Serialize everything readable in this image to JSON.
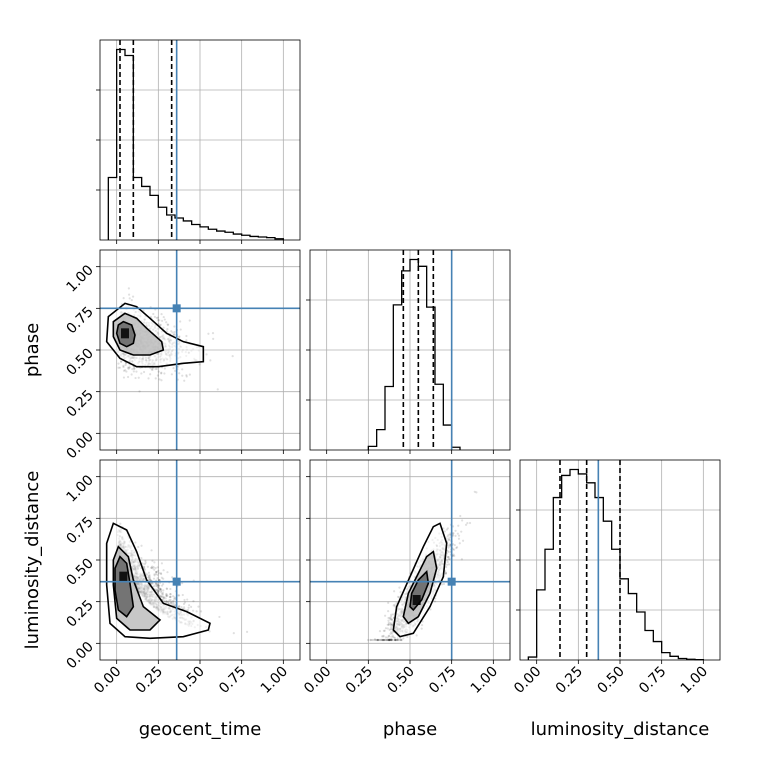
{
  "chart_data": {
    "type": "corner",
    "parameters": [
      "geocent_time",
      "phase",
      "luminosity_distance"
    ],
    "axis_labels": {
      "x": [
        "geocent_time",
        "phase",
        "luminosity_distance"
      ],
      "y": [
        "",
        "phase",
        "luminosity_distance"
      ]
    },
    "tick_labels": [
      "0.00",
      "0.25",
      "0.50",
      "0.75",
      "1.00"
    ],
    "tick_values": [
      0,
      0.25,
      0.5,
      0.75,
      1.0
    ],
    "axis_range": [
      -0.1,
      1.1
    ],
    "grid": true,
    "truth_color": "#4682b4",
    "truths": {
      "geocent_time": 0.36,
      "phase": 0.75,
      "luminosity_distance": 0.37
    },
    "quantiles": {
      "geocent_time": [
        0.02,
        0.1,
        0.33
      ],
      "phase": [
        0.46,
        0.55,
        0.64
      ],
      "luminosity_distance": [
        0.14,
        0.3,
        0.5
      ]
    },
    "histograms": {
      "geocent_time": {
        "edges": [
          -0.05,
          0.0,
          0.05,
          0.1,
          0.15,
          0.2,
          0.25,
          0.3,
          0.35,
          0.4,
          0.45,
          0.5,
          0.55,
          0.6,
          0.65,
          0.7,
          0.75,
          0.8,
          0.85,
          0.9,
          0.95,
          1.0
        ],
        "counts": [
          1.05,
          3.2,
          3.1,
          1.05,
          0.9,
          0.75,
          0.55,
          0.42,
          0.37,
          0.32,
          0.26,
          0.22,
          0.18,
          0.15,
          0.13,
          0.1,
          0.08,
          0.06,
          0.05,
          0.04,
          0.02
        ]
      },
      "phase": {
        "edges": [
          0.25,
          0.3,
          0.35,
          0.4,
          0.45,
          0.5,
          0.55,
          0.6,
          0.65,
          0.7,
          0.75,
          0.8
        ],
        "counts": [
          0.08,
          0.45,
          1.4,
          3.2,
          3.95,
          4.2,
          4.05,
          3.15,
          1.45,
          0.55,
          0.06
        ]
      },
      "luminosity_distance": {
        "edges": [
          -0.05,
          0.0,
          0.05,
          0.1,
          0.15,
          0.2,
          0.25,
          0.3,
          0.35,
          0.4,
          0.45,
          0.5,
          0.55,
          0.6,
          0.65,
          0.7,
          0.75,
          0.8,
          0.85,
          0.9,
          0.95,
          1.0
        ],
        "counts": [
          0.04,
          0.95,
          1.5,
          2.2,
          2.5,
          2.58,
          2.52,
          2.4,
          2.2,
          1.88,
          1.5,
          1.1,
          0.9,
          0.65,
          0.4,
          0.25,
          0.1,
          0.05,
          0.02,
          0.01,
          0.005
        ]
      }
    },
    "joint_contours": {
      "phase_vs_geocent_time": [
        {
          "level": "outer",
          "points": [
            [
              0.05,
              0.78
            ],
            [
              0.12,
              0.76
            ],
            [
              0.2,
              0.69
            ],
            [
              0.3,
              0.6
            ],
            [
              0.4,
              0.55
            ],
            [
              0.52,
              0.52
            ],
            [
              0.52,
              0.43
            ],
            [
              0.4,
              0.42
            ],
            [
              0.25,
              0.4
            ],
            [
              0.12,
              0.4
            ],
            [
              0.02,
              0.45
            ],
            [
              -0.06,
              0.55
            ],
            [
              -0.05,
              0.7
            ]
          ]
        },
        {
          "level": "mid",
          "points": [
            [
              0.05,
              0.72
            ],
            [
              0.12,
              0.69
            ],
            [
              0.18,
              0.63
            ],
            [
              0.27,
              0.55
            ],
            [
              0.28,
              0.5
            ],
            [
              0.2,
              0.47
            ],
            [
              0.1,
              0.47
            ],
            [
              0.02,
              0.5
            ],
            [
              -0.02,
              0.58
            ],
            [
              -0.02,
              0.67
            ]
          ]
        },
        {
          "level": "inner",
          "points": [
            [
              0.04,
              0.67
            ],
            [
              0.09,
              0.65
            ],
            [
              0.11,
              0.59
            ],
            [
              0.1,
              0.54
            ],
            [
              0.06,
              0.52
            ],
            [
              0.02,
              0.54
            ],
            [
              0.0,
              0.6
            ],
            [
              0.01,
              0.65
            ]
          ]
        }
      ],
      "luminosity_distance_vs_geocent_time": [
        {
          "level": "outer",
          "points": [
            [
              -0.02,
              0.72
            ],
            [
              0.06,
              0.68
            ],
            [
              0.12,
              0.55
            ],
            [
              0.18,
              0.38
            ],
            [
              0.28,
              0.24
            ],
            [
              0.42,
              0.19
            ],
            [
              0.56,
              0.12
            ],
            [
              0.55,
              0.08
            ],
            [
              0.4,
              0.04
            ],
            [
              0.2,
              0.03
            ],
            [
              0.05,
              0.04
            ],
            [
              -0.04,
              0.12
            ],
            [
              -0.06,
              0.35
            ],
            [
              -0.06,
              0.6
            ]
          ]
        },
        {
          "level": "mid",
          "points": [
            [
              0.01,
              0.58
            ],
            [
              0.07,
              0.52
            ],
            [
              0.1,
              0.38
            ],
            [
              0.16,
              0.22
            ],
            [
              0.26,
              0.14
            ],
            [
              0.2,
              0.08
            ],
            [
              0.08,
              0.08
            ],
            [
              0.0,
              0.15
            ],
            [
              -0.02,
              0.35
            ],
            [
              -0.02,
              0.5
            ]
          ]
        },
        {
          "level": "inner",
          "points": [
            [
              0.02,
              0.52
            ],
            [
              0.06,
              0.48
            ],
            [
              0.08,
              0.36
            ],
            [
              0.1,
              0.22
            ],
            [
              0.06,
              0.16
            ],
            [
              0.01,
              0.2
            ],
            [
              -0.01,
              0.32
            ],
            [
              -0.01,
              0.45
            ]
          ]
        }
      ],
      "luminosity_distance_vs_phase": [
        {
          "level": "outer",
          "points": [
            [
              0.68,
              0.72
            ],
            [
              0.72,
              0.6
            ],
            [
              0.7,
              0.4
            ],
            [
              0.62,
              0.22
            ],
            [
              0.52,
              0.06
            ],
            [
              0.44,
              0.04
            ],
            [
              0.4,
              0.08
            ],
            [
              0.42,
              0.22
            ],
            [
              0.5,
              0.4
            ],
            [
              0.58,
              0.58
            ],
            [
              0.64,
              0.7
            ]
          ]
        },
        {
          "level": "mid",
          "points": [
            [
              0.64,
              0.55
            ],
            [
              0.66,
              0.45
            ],
            [
              0.62,
              0.3
            ],
            [
              0.55,
              0.16
            ],
            [
              0.49,
              0.12
            ],
            [
              0.46,
              0.16
            ],
            [
              0.49,
              0.3
            ],
            [
              0.55,
              0.42
            ],
            [
              0.6,
              0.52
            ]
          ]
        },
        {
          "level": "inner",
          "points": [
            [
              0.6,
              0.43
            ],
            [
              0.61,
              0.36
            ],
            [
              0.57,
              0.26
            ],
            [
              0.52,
              0.2
            ],
            [
              0.5,
              0.22
            ],
            [
              0.51,
              0.3
            ],
            [
              0.55,
              0.38
            ]
          ]
        }
      ]
    },
    "joint_density_peaks": {
      "phase_vs_geocent_time": {
        "x": 0.05,
        "y": 0.6
      },
      "luminosity_distance_vs_geocent_time": {
        "x": 0.04,
        "y": 0.4
      },
      "luminosity_distance_vs_phase": {
        "x": 0.54,
        "y": 0.26
      }
    }
  }
}
